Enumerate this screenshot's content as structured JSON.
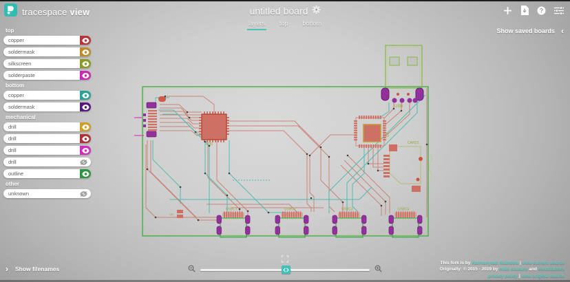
{
  "brand": {
    "name": "tracespace",
    "suffix": "view",
    "logo_icon": "tracespace-logo",
    "accent_color": "#3fc3b8"
  },
  "header": {
    "title": "untitled board",
    "title_icon": "gear-icon",
    "action_icons": [
      "plus-icon",
      "new-file-icon",
      "help-icon",
      "settings-sliders-icon"
    ]
  },
  "tabs": [
    {
      "label": "layers",
      "active": true
    },
    {
      "label": "top",
      "active": false
    },
    {
      "label": "bottom",
      "active": false
    }
  ],
  "saved_boards": {
    "label": "Show saved boards",
    "chevron": "‹"
  },
  "sidebar": {
    "sections": [
      {
        "label": "top",
        "items": [
          {
            "name": "copper",
            "color": "#b93438",
            "visible": true
          },
          {
            "name": "soldermask",
            "color": "#c08a27",
            "visible": true
          },
          {
            "name": "silkscreen",
            "color": "#8a9b23",
            "visible": true
          },
          {
            "name": "solderpaste",
            "color": "#cb28b6",
            "visible": true
          }
        ]
      },
      {
        "label": "bottom",
        "items": [
          {
            "name": "copper",
            "color": "#26a396",
            "visible": true
          },
          {
            "name": "soldermask",
            "color": "#54187f",
            "visible": true
          }
        ]
      },
      {
        "label": "mechanical",
        "items": [
          {
            "name": "drill",
            "color": "#d09d28",
            "visible": true
          },
          {
            "name": "drill",
            "color": "#b03338",
            "visible": true
          },
          {
            "name": "drill",
            "color": "#d12cc2",
            "visible": true
          },
          {
            "name": "drill",
            "color": null,
            "visible": false
          },
          {
            "name": "outline",
            "color": "#2e9440",
            "visible": true
          }
        ]
      },
      {
        "label": "other",
        "items": [
          {
            "name": "unknown",
            "color": null,
            "visible": false
          }
        ]
      }
    ]
  },
  "filenames_toggle": {
    "label": "Show filenames",
    "chevron": "›"
  },
  "zoom_controls": {
    "zoom_out_icon": "magnifier-minus-icon",
    "zoom_in_icon": "magnifier-plus-icon",
    "fullscreen_icon": "fullscreen-icon",
    "slider_position_percent": 48
  },
  "board": {
    "labels": {
      "usb": "USB",
      "u30": "U30",
      "u4": "U4",
      "card1": "CARD1",
      "u3": "U3",
      "usbc1": "USBC1",
      "usbc2": "USBC2",
      "usbc3": "USBC3",
      "usbc4": "USBC4"
    },
    "layer_colors": {
      "top_copper": "#c97767",
      "bottom_copper": "#3bb9ab",
      "outline": "#3aab44",
      "silkscreen": "#9aa83e",
      "soldermask_bottom": "#93319c",
      "drill_red": "#cc5242"
    }
  },
  "footer": {
    "lines": [
      {
        "segments": [
          {
            "text": "This fork is by ",
            "link": false
          },
          {
            "text": "Karmanyaah Malhotra",
            "link": true
          },
          {
            "text": " | ",
            "link": false
          },
          {
            "text": "view current source",
            "link": true
          }
        ]
      },
      {
        "segments": [
          {
            "text": "Originally: © 2015 - 2019 by ",
            "link": false
          },
          {
            "text": "mike cousins",
            "link": true
          },
          {
            "text": " and ",
            "link": false
          },
          {
            "text": "contributors",
            "link": true
          }
        ]
      },
      {
        "segments": [
          {
            "text": "privacy policy",
            "link": true
          },
          {
            "text": " | ",
            "link": false
          },
          {
            "text": "view original source",
            "link": true
          }
        ]
      }
    ]
  }
}
